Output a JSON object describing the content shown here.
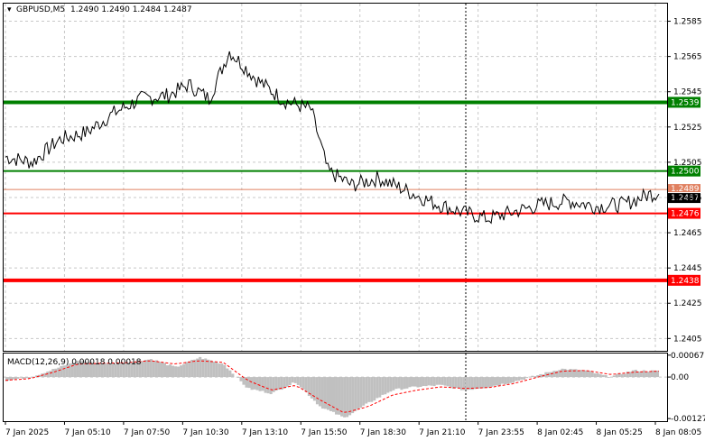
{
  "header": {
    "symbol": "GBPUSD,M5",
    "ohlc": "1.2490 1.2490 1.2484 1.2487"
  },
  "colors": {
    "price": "#000000",
    "grid": "#c8c8c8",
    "support_green": "#008000",
    "resistance_red": "#ff0000",
    "bid_line": "#e08060",
    "histogram": "#c0c0c0",
    "signal": "#ff0000"
  },
  "chart_data": [
    {
      "type": "line",
      "series": [
        {
          "x": [
            "7 Jan 2025 00:00",
            "7 Jan 2025 01:20",
            "7 Jan 2025 02:40",
            "7 Jan 2025 04:00",
            "7 Jan 2025 05:20",
            "7 Jan 2025 06:40",
            "7 Jan 2025 08:00",
            "7 Jan 2025 09:00",
            "7 Jan 2025 10:00",
            "7 Jan 2025 11:00",
            "7 Jan 2025 12:20",
            "7 Jan 2025 13:40",
            "7 Jan 2025 15:00",
            "7 Jan 2025 15:50",
            "7 Jan 2025 17:00",
            "7 Jan 2025 18:20",
            "7 Jan 2025 19:40",
            "7 Jan 2025 21:00",
            "7 Jan 2025 22:20",
            "7 Jan 2025 23:40",
            "8 Jan 2025 01:00",
            "8 Jan 2025 02:20",
            "8 Jan 2025 03:40",
            "8 Jan 2025 05:00",
            "8 Jan 2025 06:20",
            "8 Jan 2025 07:40",
            "8 Jan 2025 08:05"
          ],
          "values": [
            1.2508,
            1.2505,
            1.2518,
            1.2522,
            1.2533,
            1.2541,
            1.2543,
            1.2549,
            1.2541,
            1.2568,
            1.2552,
            1.254,
            1.2535,
            1.25,
            1.2492,
            1.2496,
            1.2489,
            1.2482,
            1.2477,
            1.2473,
            1.2477,
            1.2481,
            1.2483,
            1.248,
            1.2481,
            1.2487,
            1.2487
          ]
        }
      ],
      "levels": [
        {
          "value": 1.2539,
          "label": "1.2539",
          "color": "green"
        },
        {
          "value": 1.25,
          "label": "1.2500",
          "color": "green"
        },
        {
          "value": 1.2476,
          "label": "1.2476",
          "color": "red"
        },
        {
          "value": 1.2438,
          "label": "1.2438",
          "color": "red"
        }
      ],
      "bid": {
        "value": 1.2487,
        "label": "1.2487"
      },
      "ask_label": "1.2489",
      "yticks": [
        "1.2585",
        "1.2565",
        "1.2545",
        "1.2525",
        "1.2505",
        "1.2485",
        "1.2465",
        "1.2445",
        "1.2425",
        "1.2405"
      ],
      "ylim": [
        1.2398,
        1.2595
      ],
      "xticks": [
        "7 Jan 2025",
        "7 Jan 05:10",
        "7 Jan 07:50",
        "7 Jan 10:30",
        "7 Jan 13:10",
        "7 Jan 15:50",
        "7 Jan 18:30",
        "7 Jan 21:10",
        "7 Jan 23:55",
        "8 Jan 02:45",
        "8 Jan 05:25",
        "8 Jan 08:05"
      ],
      "grid": true
    },
    {
      "type": "bar",
      "title": "MACD(12,26,9) 0.00018 0.00018",
      "histogram": [
        -0.0001,
        0.0,
        0.00025,
        0.0005,
        0.0004,
        0.00045,
        0.00055,
        0.0003,
        0.0006,
        0.0004,
        -0.00035,
        -0.0005,
        -0.00015,
        -0.0009,
        -0.00125,
        -0.0008,
        -0.0004,
        -0.0003,
        -0.00025,
        -0.0004,
        -0.0003,
        -0.00015,
        5e-05,
        0.00025,
        0.0002,
        0.0,
        0.0002,
        0.00018
      ],
      "signal": [
        -0.0001,
        -5e-05,
        0.00015,
        0.0004,
        0.00042,
        0.00044,
        0.0005,
        0.0004,
        0.0005,
        0.00045,
        -0.0001,
        -0.0004,
        -0.00025,
        -0.0007,
        -0.0011,
        -0.0009,
        -0.00055,
        -0.0004,
        -0.0003,
        -0.00035,
        -0.00032,
        -0.0002,
        0.0,
        0.00018,
        0.0002,
        8e-05,
        0.00015,
        0.00018
      ],
      "yticks": [
        "0.00067",
        "0.00",
        "-0.00127"
      ],
      "ylim": [
        -0.00135,
        0.00072
      ]
    }
  ]
}
